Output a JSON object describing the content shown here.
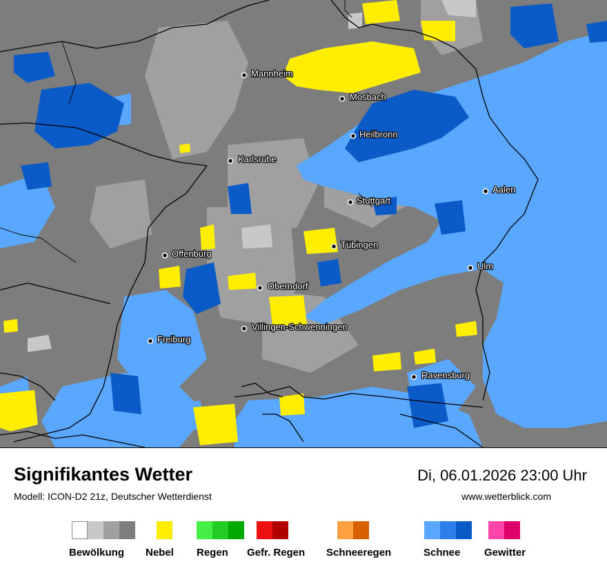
{
  "title": "Signifikantes Wetter",
  "model": "Modell: ICON-D2 21z, Deutscher Wetterdienst",
  "datetime": "Di, 06.01.2026 23:00 Uhr",
  "website": "www.wetterblick.com",
  "cities": [
    {
      "name": "Mannheim"
    },
    {
      "name": "Mosbach"
    },
    {
      "name": "Heilbronn"
    },
    {
      "name": "Karlsruhe"
    },
    {
      "name": "Aalen"
    },
    {
      "name": "Stuttgart"
    },
    {
      "name": "Tübingen"
    },
    {
      "name": "Offenburg"
    },
    {
      "name": "Ulm"
    },
    {
      "name": "Oberndorf"
    },
    {
      "name": "Villingen-Schwenningen"
    },
    {
      "name": "Freiburg"
    },
    {
      "name": "Ravensburg"
    }
  ],
  "legend": [
    {
      "label": "Bewölkung",
      "colors": [
        "#ffffff",
        "#c8c8c8",
        "#a0a0a0",
        "#7d7d7d"
      ]
    },
    {
      "label": "Nebel",
      "colors": [
        "#ffee00"
      ]
    },
    {
      "label": "Regen",
      "colors": [
        "#44ee44",
        "#22cc22",
        "#00aa00"
      ]
    },
    {
      "label": "Gefr. Regen",
      "colors": [
        "#ee1111",
        "#b00000"
      ]
    },
    {
      "label": "Schneeregen",
      "colors": [
        "#ffa040",
        "#d86000"
      ]
    },
    {
      "label": "Schnee",
      "colors": [
        "#5aa7ff",
        "#2d7dea",
        "#0a5ac8"
      ]
    },
    {
      "label": "Gewitter",
      "colors": [
        "#ff44aa",
        "#e0006a"
      ]
    }
  ],
  "map_colors": {
    "cloud_dark": "#7d7d7d",
    "cloud_mid": "#a0a0a0",
    "cloud_light": "#c8c8c8",
    "fog": "#ffee00",
    "snow_light": "#5aa7ff",
    "snow_dark": "#0a5ac8"
  }
}
